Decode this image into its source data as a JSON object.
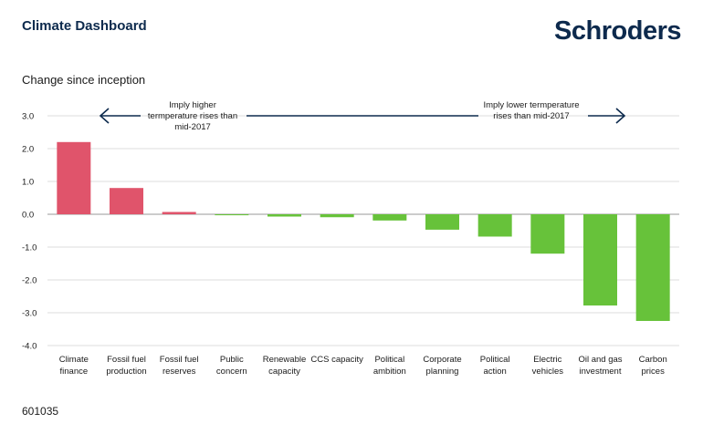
{
  "header": {
    "title": "Climate Dashboard",
    "logo_text": "Schroders"
  },
  "footer": {
    "code": "601035"
  },
  "chart_data": {
    "type": "bar",
    "subtitle": "Change since inception",
    "categories": [
      [
        "Climate",
        "finance"
      ],
      [
        "Fossil fuel",
        "production"
      ],
      [
        "Fossil fuel",
        "reserves"
      ],
      [
        "Public",
        "concern"
      ],
      [
        "Renewable",
        "capacity"
      ],
      [
        "CCS capacity"
      ],
      [
        "Political",
        "ambition"
      ],
      [
        "Corporate",
        "planning"
      ],
      [
        "Political",
        "action"
      ],
      [
        "Electric",
        "vehicles"
      ],
      [
        "Oil and gas",
        "investment"
      ],
      [
        "Carbon",
        "prices"
      ]
    ],
    "values": [
      2.2,
      0.8,
      0.07,
      -0.03,
      -0.07,
      -0.09,
      -0.19,
      -0.47,
      -0.68,
      -1.2,
      -2.78,
      -3.25
    ],
    "ylim": [
      -4.0,
      3.0
    ],
    "yticks": [
      3.0,
      2.0,
      1.0,
      0.0,
      -1.0,
      -2.0,
      -3.0,
      -4.0
    ],
    "ytick_labels": [
      "3.0",
      "2.0",
      "1.0",
      "0.0",
      "-1.0",
      "-2.0",
      "-3.0",
      "-4.0"
    ],
    "grid": true,
    "colors": {
      "positive": "#e0546b",
      "negative": "#67c23a",
      "grid": "#dcdcdc",
      "axis": "#999999",
      "arrow": "#0d2a4d"
    },
    "annotations": {
      "left": [
        "Imply higher",
        "termperature rises than",
        "mid-2017"
      ],
      "right": [
        "Imply lower termperature",
        "rises than mid-2017"
      ]
    }
  }
}
